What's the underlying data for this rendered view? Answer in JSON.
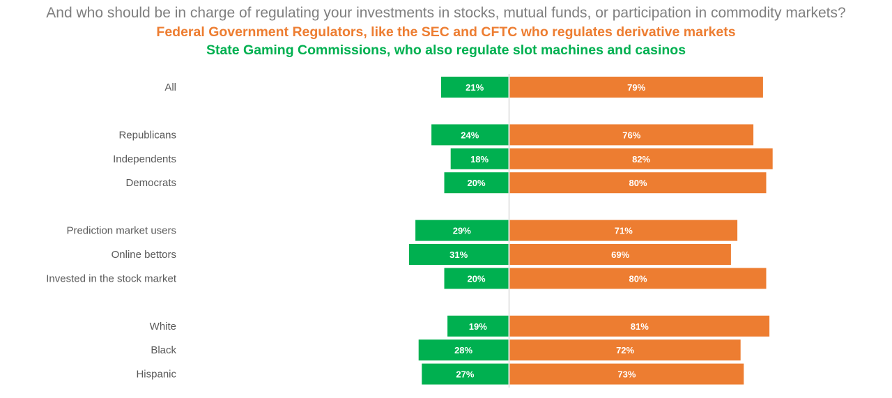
{
  "header": {
    "question": "And who should be in charge of regulating your investments in stocks, mutual funds, or participation in commodity markets?",
    "option_federal": "Federal Government Regulators, like the SEC and CFTC who regulates derivative markets",
    "option_state": "State Gaming Commissions, who also regulate slot machines and casinos"
  },
  "colors": {
    "federal": "#ed7d31",
    "state": "#00b050",
    "question": "#7f7f7f",
    "category_text": "#595959",
    "axis": "#d9d9d9"
  },
  "chart_data": {
    "type": "bar",
    "orientation": "horizontal",
    "stacking": "diverging",
    "xlabel": "",
    "ylabel": "",
    "grid": false,
    "legend": "none",
    "value_format": "percent",
    "categories": [
      "All",
      "Republicans",
      "Independents",
      "Democrats",
      "Prediction market users",
      "Online bettors",
      "Invested in the stock market",
      "White",
      "Black",
      "Hispanic"
    ],
    "groups": [
      [
        0
      ],
      [
        1,
        2,
        3
      ],
      [
        4,
        5,
        6
      ],
      [
        7,
        8,
        9
      ]
    ],
    "series": [
      {
        "key": "state",
        "side": "left",
        "values": [
          21,
          24,
          18,
          20,
          29,
          31,
          20,
          19,
          28,
          27
        ]
      },
      {
        "key": "federal",
        "side": "right",
        "values": [
          79,
          76,
          82,
          80,
          71,
          69,
          80,
          81,
          72,
          73
        ]
      }
    ]
  }
}
